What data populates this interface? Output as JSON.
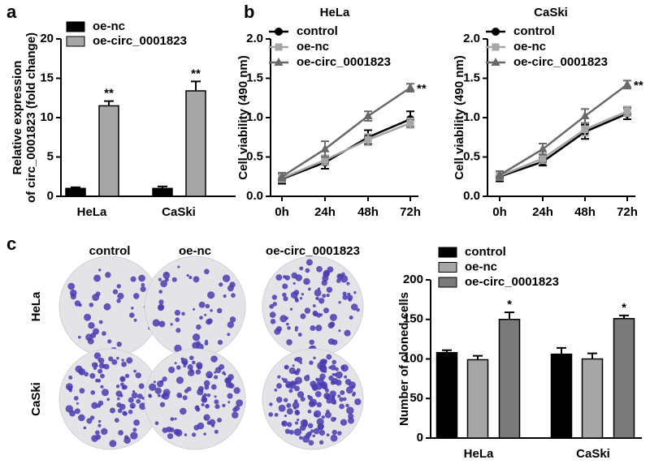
{
  "panel_labels": [
    "a",
    "b",
    "c"
  ],
  "colony_assay": {
    "columns": [
      "control",
      "oe-nc",
      "oe-circ_0001823"
    ],
    "rows": [
      "HeLa",
      "CaSki"
    ]
  },
  "chart_data": [
    {
      "type": "bar",
      "ylabel": "Relative expression of circ_0001823 (fold change)",
      "categories": [
        "HeLa",
        "CaSki"
      ],
      "ylim": [
        0,
        20
      ],
      "yticks": [
        0,
        5,
        10,
        15,
        20
      ],
      "legend": "top-left",
      "series": [
        {
          "name": "oe-nc",
          "color": "#000000",
          "values": [
            1.0,
            1.0
          ],
          "errors": [
            0.15,
            0.25
          ]
        },
        {
          "name": "oe-circ_0001823",
          "color": "#a6a6a6",
          "values": [
            11.5,
            13.4
          ],
          "errors": [
            0.6,
            1.2
          ],
          "significance": [
            "**",
            "**"
          ]
        }
      ]
    },
    {
      "type": "line",
      "title": "HeLa",
      "ylabel": "Cell viability (490 nm)",
      "categories": [
        "0h",
        "24h",
        "48h",
        "72h"
      ],
      "ylim": [
        0,
        2
      ],
      "yticks": [
        {
          "value": 0,
          "label": "0.0"
        },
        0.5,
        {
          "value": 1,
          "label": "1.0"
        },
        1.5,
        {
          "value": 2,
          "label": "2.0"
        }
      ],
      "legend": "top-left",
      "series": [
        {
          "name": "control",
          "color": "#000000",
          "marker": "circle",
          "values": [
            0.22,
            0.43,
            0.75,
            0.98
          ],
          "errors": [
            0.06,
            0.08,
            0.09,
            0.1
          ]
        },
        {
          "name": "oe-nc",
          "color": "#a6a6a6",
          "marker": "square",
          "values": [
            0.23,
            0.46,
            0.72,
            0.93
          ],
          "errors": [
            0.05,
            0.06,
            0.07,
            0.06
          ]
        },
        {
          "name": "oe-circ_0001823",
          "color": "#696969",
          "marker": "triangle",
          "values": [
            0.25,
            0.6,
            1.02,
            1.38
          ],
          "errors": [
            0.05,
            0.1,
            0.06,
            0.05
          ],
          "significance": [
            null,
            null,
            null,
            "**"
          ]
        }
      ]
    },
    {
      "type": "line",
      "title": "CaSki",
      "ylabel": "Cell viability (490 nm)",
      "categories": [
        "0h",
        "24h",
        "48h",
        "72h"
      ],
      "ylim": [
        0,
        2
      ],
      "yticks": [
        {
          "value": 0,
          "label": "0.0"
        },
        0.5,
        {
          "value": 1,
          "label": "1.0"
        },
        1.5,
        {
          "value": 2,
          "label": "2.0"
        }
      ],
      "legend": "top-left",
      "series": [
        {
          "name": "control",
          "color": "#000000",
          "marker": "circle",
          "values": [
            0.25,
            0.44,
            0.82,
            1.05
          ],
          "errors": [
            0.06,
            0.05,
            0.09,
            0.07
          ]
        },
        {
          "name": "oe-nc",
          "color": "#a6a6a6",
          "marker": "square",
          "values": [
            0.26,
            0.48,
            0.85,
            1.08
          ],
          "errors": [
            0.05,
            0.06,
            0.08,
            0.06
          ]
        },
        {
          "name": "oe-circ_0001823",
          "color": "#696969",
          "marker": "triangle",
          "values": [
            0.27,
            0.6,
            1.02,
            1.42
          ],
          "errors": [
            0.05,
            0.07,
            0.09,
            0.05
          ],
          "significance": [
            null,
            null,
            null,
            "**"
          ]
        }
      ]
    },
    {
      "type": "bar",
      "ylabel": "Number of cloned cells",
      "categories": [
        "HeLa",
        "CaSki"
      ],
      "ylim": [
        0,
        200
      ],
      "yticks": [
        0,
        50,
        100,
        150,
        200
      ],
      "legend": "top-left",
      "series": [
        {
          "name": "control",
          "color": "#000000",
          "values": [
            108,
            106
          ],
          "errors": [
            3,
            8
          ]
        },
        {
          "name": "oe-nc",
          "color": "#a6a6a6",
          "values": [
            99,
            100
          ],
          "errors": [
            5,
            7
          ]
        },
        {
          "name": "oe-circ_0001823",
          "color": "#7a7a7a",
          "values": [
            150,
            151
          ],
          "errors": [
            9,
            4
          ],
          "significance": [
            "*",
            "*"
          ]
        }
      ]
    }
  ]
}
